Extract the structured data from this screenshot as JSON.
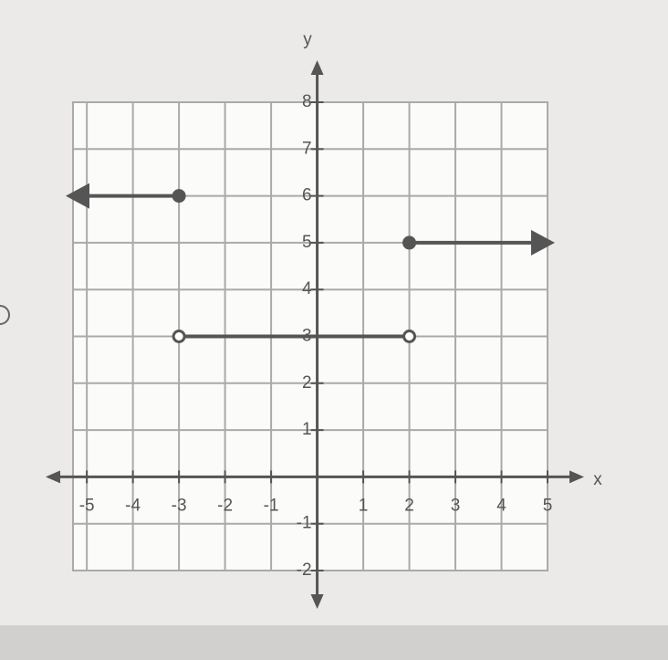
{
  "chart_data": {
    "type": "line",
    "x_label": "x",
    "y_label": "y",
    "xlim": [
      -5.3,
      5
    ],
    "ylim": [
      -2,
      8
    ],
    "xticks": [
      -5,
      -4,
      -3,
      -2,
      -1,
      1,
      2,
      3,
      4,
      5
    ],
    "yticks": [
      -2,
      -1,
      1,
      2,
      3,
      4,
      5,
      6,
      7,
      8
    ],
    "grid": true,
    "series": [
      {
        "color": "#555555",
        "x": [
          -5.3,
          -3
        ],
        "values": [
          6,
          6
        ],
        "start": "arrow",
        "end": "closed"
      },
      {
        "color": "#555555",
        "x": [
          -3,
          2
        ],
        "values": [
          3,
          3
        ],
        "start": "open",
        "end": "open"
      },
      {
        "color": "#555555",
        "x": [
          2,
          5
        ],
        "values": [
          5,
          5
        ],
        "start": "closed",
        "end": "arrow"
      }
    ]
  }
}
